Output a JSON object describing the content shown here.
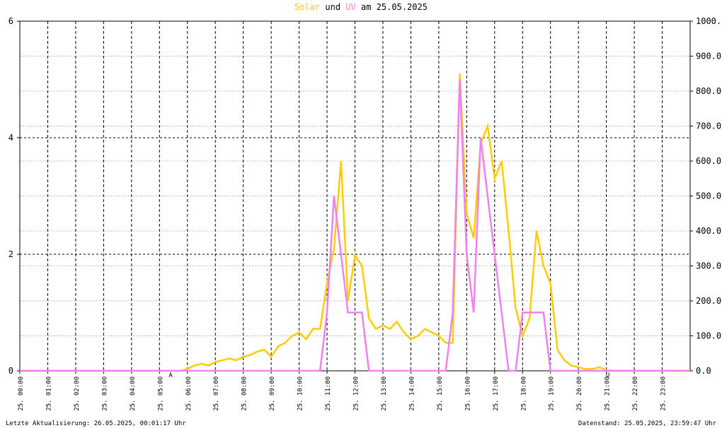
{
  "chart_data": {
    "type": "line",
    "title_and": "und",
    "title_date": "am 25.05.2025",
    "x": [
      0,
      0.25,
      0.5,
      0.75,
      1,
      1.25,
      1.5,
      1.75,
      2,
      2.25,
      2.5,
      2.75,
      3,
      3.25,
      3.5,
      3.75,
      4,
      4.25,
      4.5,
      4.75,
      5,
      5.25,
      5.5,
      5.75,
      6,
      6.25,
      6.5,
      6.75,
      7,
      7.25,
      7.5,
      7.75,
      8,
      8.25,
      8.5,
      8.75,
      9,
      9.25,
      9.5,
      9.75,
      10,
      10.25,
      10.5,
      10.75,
      11,
      11.25,
      11.5,
      11.75,
      12,
      12.25,
      12.5,
      12.75,
      13,
      13.25,
      13.5,
      13.75,
      14,
      14.25,
      14.5,
      14.75,
      15,
      15.25,
      15.5,
      15.75,
      16,
      16.25,
      16.5,
      16.75,
      17,
      17.25,
      17.5,
      17.75,
      18,
      18.25,
      18.5,
      18.75,
      19,
      19.25,
      19.5,
      19.75,
      20,
      20.25,
      20.5,
      20.75,
      21,
      21.25,
      21.5,
      21.75,
      22,
      22.25,
      22.5,
      22.75,
      23,
      23.25,
      23.5,
      23.75,
      24
    ],
    "series": [
      {
        "name": "Solar",
        "color": "#ffcc00",
        "axis": "y2",
        "values": [
          0,
          0,
          0,
          0,
          0,
          0,
          0,
          0,
          0,
          0,
          0,
          0,
          0,
          0,
          0,
          0,
          0,
          0,
          0,
          0,
          0,
          0,
          0,
          0,
          5,
          15,
          20,
          15,
          25,
          30,
          35,
          30,
          40,
          45,
          55,
          60,
          40,
          70,
          80,
          100,
          110,
          90,
          120,
          120,
          250,
          350,
          600,
          200,
          330,
          300,
          150,
          120,
          130,
          120,
          140,
          110,
          90,
          100,
          120,
          110,
          100,
          80,
          80,
          850,
          450,
          380,
          650,
          700,
          550,
          600,
          400,
          180,
          100,
          150,
          400,
          300,
          250,
          60,
          30,
          15,
          10,
          5,
          5,
          10,
          2,
          0,
          0,
          0,
          0,
          0,
          0,
          0,
          0,
          0,
          0,
          0,
          0
        ]
      },
      {
        "name": "UV",
        "color": "#ee82ee",
        "values": [
          0,
          0,
          0,
          0,
          0,
          0,
          0,
          0,
          0,
          0,
          0,
          0,
          0,
          0,
          0,
          0,
          0,
          0,
          0,
          0,
          0,
          0,
          0,
          0,
          0,
          0,
          0,
          0,
          0,
          0,
          0,
          0,
          0,
          0,
          0,
          0,
          0,
          0,
          0,
          0,
          0,
          0,
          0,
          0,
          1,
          3,
          2,
          1,
          1,
          1,
          0,
          0,
          0,
          0,
          0,
          0,
          0,
          0,
          0,
          0,
          0,
          0,
          1,
          5,
          2,
          1,
          4,
          3,
          2,
          1,
          0,
          0,
          1,
          1,
          1,
          1,
          0,
          0,
          0,
          0,
          0,
          0,
          0,
          0,
          0,
          0,
          0,
          0,
          0,
          0,
          0,
          0,
          0,
          0,
          0,
          0,
          0
        ]
      }
    ],
    "xlim": [
      0,
      24
    ],
    "xticks": [
      {
        "value": 0,
        "label": "25. 00:00"
      },
      {
        "value": 1,
        "label": "25. 01:00"
      },
      {
        "value": 2,
        "label": "25. 02:00"
      },
      {
        "value": 3,
        "label": "25. 03:00"
      },
      {
        "value": 4,
        "label": "25. 04:00"
      },
      {
        "value": 5,
        "label": "25. 05:00"
      },
      {
        "value": 6,
        "label": "25. 06:00"
      },
      {
        "value": 7,
        "label": "25. 07:00"
      },
      {
        "value": 8,
        "label": "25. 08:00"
      },
      {
        "value": 9,
        "label": "25. 09:00"
      },
      {
        "value": 10,
        "label": "25. 10:00"
      },
      {
        "value": 11,
        "label": "25. 11:00"
      },
      {
        "value": 12,
        "label": "25. 12:00"
      },
      {
        "value": 13,
        "label": "25. 13:00"
      },
      {
        "value": 14,
        "label": "25. 14:00"
      },
      {
        "value": 15,
        "label": "25. 15:00"
      },
      {
        "value": 16,
        "label": "25. 16:00"
      },
      {
        "value": 17,
        "label": "25. 17:00"
      },
      {
        "value": 18,
        "label": "25. 18:00"
      },
      {
        "value": 19,
        "label": "25. 19:00"
      },
      {
        "value": 20,
        "label": "25. 20:00"
      },
      {
        "value": 21,
        "label": "25. 21:00"
      },
      {
        "value": 22,
        "label": "25. 22:00"
      },
      {
        "value": 23,
        "label": "25. 23:00"
      }
    ],
    "ylim": [
      0,
      6
    ],
    "yticks": [
      0,
      2,
      4,
      6
    ],
    "y2lim": [
      0,
      1000
    ],
    "y2ticks": [
      {
        "value": 0,
        "label": "0.0"
      },
      {
        "value": 100,
        "label": "100.0"
      },
      {
        "value": 200,
        "label": "200.0"
      },
      {
        "value": 300,
        "label": "300.0"
      },
      {
        "value": 400,
        "label": "400.0"
      },
      {
        "value": 500,
        "label": "500.0"
      },
      {
        "value": 600,
        "label": "600.0"
      },
      {
        "value": 700,
        "label": "700.0"
      },
      {
        "value": 800,
        "label": "800.0"
      },
      {
        "value": 900,
        "label": "900.0"
      },
      {
        "value": 1000,
        "label": "1000.0"
      }
    ],
    "grid": true,
    "annotations": [
      {
        "x": 5.4,
        "text": "A",
        "color": "#cc0000"
      },
      {
        "x": 21.05,
        "text": "U",
        "color": "#cc0000"
      }
    ],
    "footer_left": "Letzte Aktualisierung: 26.05.2025, 00:01:17 Uhr",
    "footer_right": "Datenstand: 25.05.2025, 23:59:47 Uhr"
  }
}
